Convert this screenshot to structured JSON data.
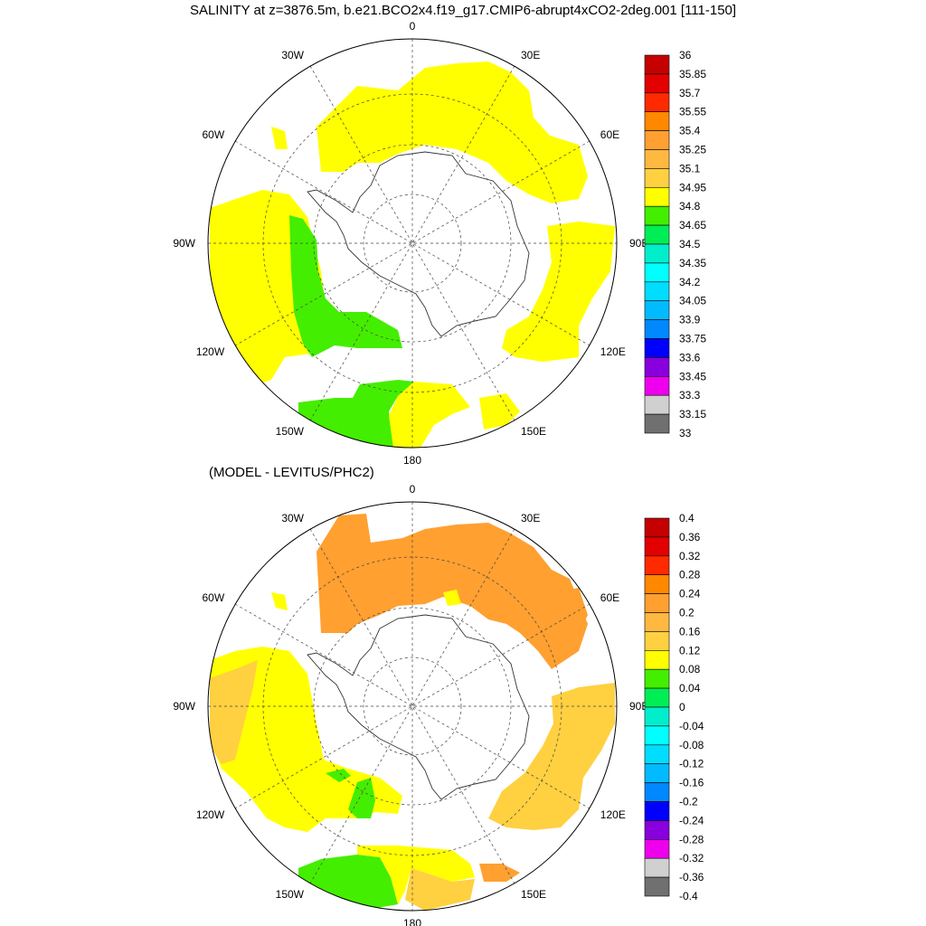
{
  "top_panel": {
    "title": "SALINITY at z=3876.5m, b.e21.BCO2x4.f19_g17.CMIP6-abrupt4xCO2-2deg.001 [111-150]",
    "lon_labels": [
      "0",
      "30E",
      "60E",
      "90E",
      "120E",
      "150E",
      "180",
      "150W",
      "120W",
      "90W",
      "60W",
      "30W"
    ],
    "colorbar": {
      "labels": [
        "36",
        "35.85",
        "35.7",
        "35.55",
        "35.4",
        "35.25",
        "35.1",
        "34.95",
        "34.8",
        "34.65",
        "34.5",
        "34.35",
        "34.2",
        "34.05",
        "33.9",
        "33.75",
        "33.6",
        "33.45",
        "33.3",
        "33.15",
        "33"
      ],
      "colors": [
        "#c40000",
        "#e20000",
        "#ff2a00",
        "#ff8800",
        "#ffa030",
        "#ffb840",
        "#ffd040",
        "#ffff00",
        "#44ee00",
        "#00ee55",
        "#00eecc",
        "#00ffff",
        "#00ddff",
        "#00bbff",
        "#0088ff",
        "#0000ff",
        "#8800dd",
        "#ee00ee",
        "#d0d0d0",
        "#707070"
      ]
    }
  },
  "bottom_panel": {
    "title": "(MODEL - LEVITUS/PHC2)",
    "lon_labels": [
      "0",
      "30E",
      "60E",
      "90E",
      "120E",
      "150E",
      "180",
      "150W",
      "120W",
      "90W",
      "60W",
      "30W"
    ],
    "colorbar": {
      "labels": [
        "0.4",
        "0.36",
        "0.32",
        "0.28",
        "0.24",
        "0.2",
        "0.16",
        "0.12",
        "0.08",
        "0.04",
        "0",
        "-0.04",
        "-0.08",
        "-0.12",
        "-0.16",
        "-0.2",
        "-0.24",
        "-0.28",
        "-0.32",
        "-0.36",
        "-0.4"
      ],
      "colors": [
        "#c40000",
        "#e20000",
        "#ff2a00",
        "#ff8800",
        "#ffa030",
        "#ffb840",
        "#ffd040",
        "#ffff00",
        "#44ee00",
        "#00ee55",
        "#00eecc",
        "#00ffff",
        "#00ddff",
        "#00bbff",
        "#0088ff",
        "#0000ff",
        "#8800dd",
        "#ee00ee",
        "#d0d0d0",
        "#707070"
      ]
    }
  },
  "fill_colors": {
    "yellow": "#ffff00",
    "green": "#44ee00",
    "orange": "#ffa030",
    "light_orange": "#ffd040"
  }
}
